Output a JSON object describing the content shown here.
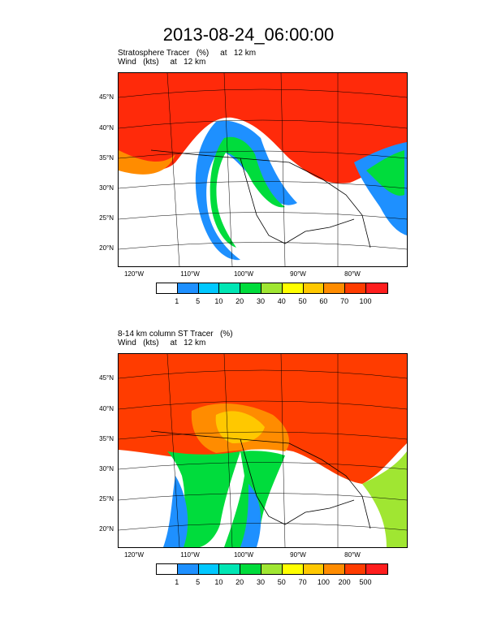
{
  "title": "2013-08-24_06:00:00",
  "panel1": {
    "line1": "Stratosphere Tracer   (%)     at   12 km",
    "line2": "Wind   (kts)     at   12 km",
    "lat_labels": [
      "45°N",
      "40°N",
      "35°N",
      "30°N",
      "25°N",
      "20°N"
    ],
    "lon_labels": [
      "120°W",
      "110°W",
      "100°W",
      "90°W",
      "80°W"
    ],
    "colorbar_labels": [
      "1",
      "5",
      "10",
      "20",
      "30",
      "40",
      "50",
      "60",
      "70",
      "100"
    ]
  },
  "panel2": {
    "line1": "8-14 km column ST Tracer   (%)",
    "line2": "Wind   (kts)     at   12 km",
    "lat_labels": [
      "45°N",
      "40°N",
      "35°N",
      "30°N",
      "25°N",
      "20°N"
    ],
    "lon_labels": [
      "120°W",
      "110°W",
      "100°W",
      "90°W",
      "80°W"
    ],
    "colorbar_labels": [
      "1",
      "5",
      "10",
      "20",
      "30",
      "50",
      "70",
      "100",
      "200",
      "500"
    ]
  },
  "colors": [
    "#ffffff",
    "#1e90ff",
    "#00c8ff",
    "#00e6b4",
    "#00dc3c",
    "#a0e632",
    "#ffff00",
    "#ffc800",
    "#ff8c00",
    "#ff3c00",
    "#ff1e1e"
  ]
}
